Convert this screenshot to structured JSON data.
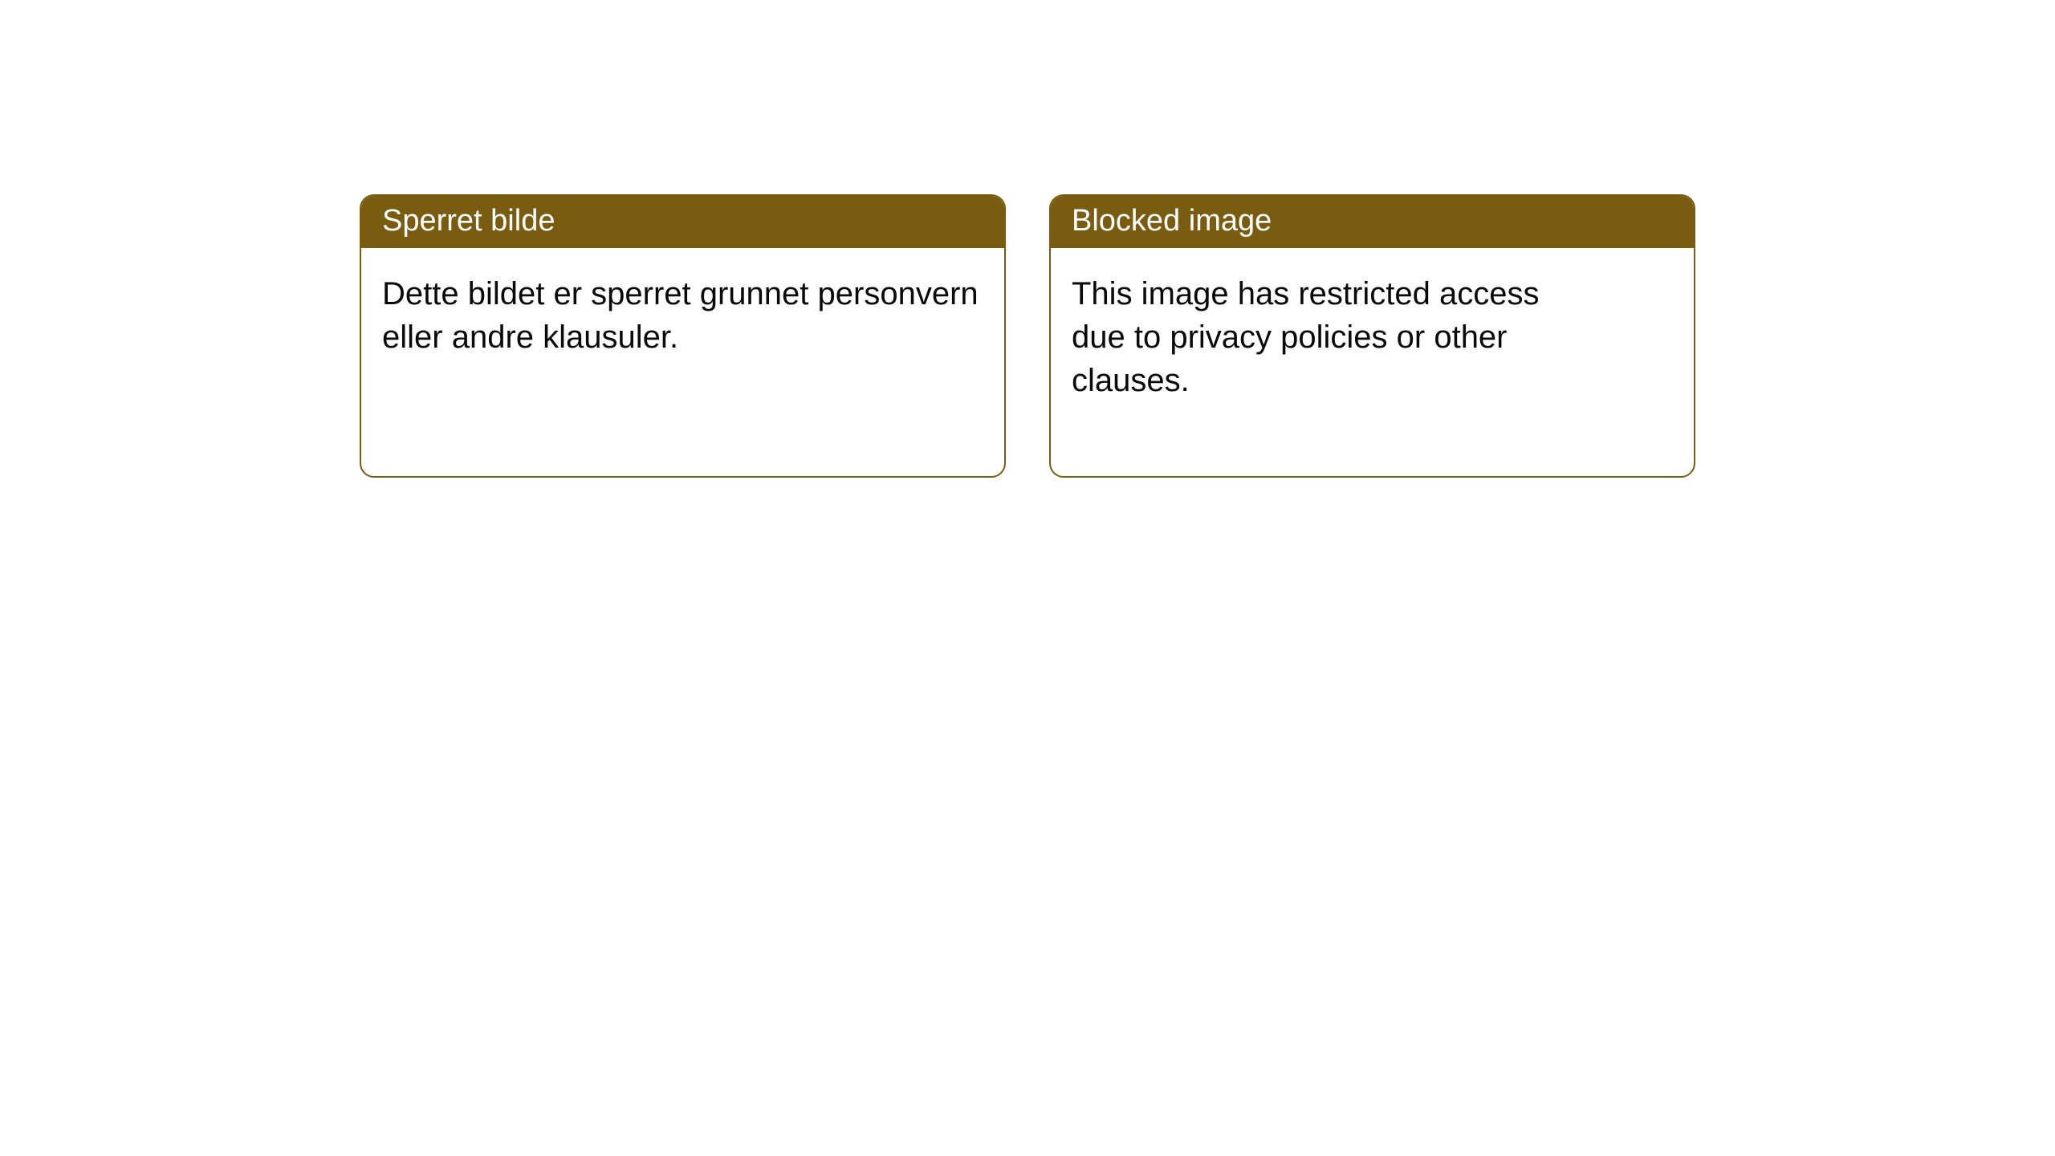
{
  "layout": {
    "background_color": "#ffffff",
    "card_border_color": "#7a5c11",
    "card_header_bg": "#7a5c11",
    "card_header_fg": "#ffffff",
    "card_body_fg": "#0a0a0a",
    "card_border_radius": 18,
    "header_fontsize": 38,
    "body_fontsize": 40
  },
  "cards": {
    "no": {
      "title": "Sperret bilde",
      "message": "Dette bildet er sperret grunnet personvern eller andre klausuler."
    },
    "en": {
      "title": "Blocked image",
      "message": "This image has restricted access due to privacy policies or other clauses."
    }
  }
}
